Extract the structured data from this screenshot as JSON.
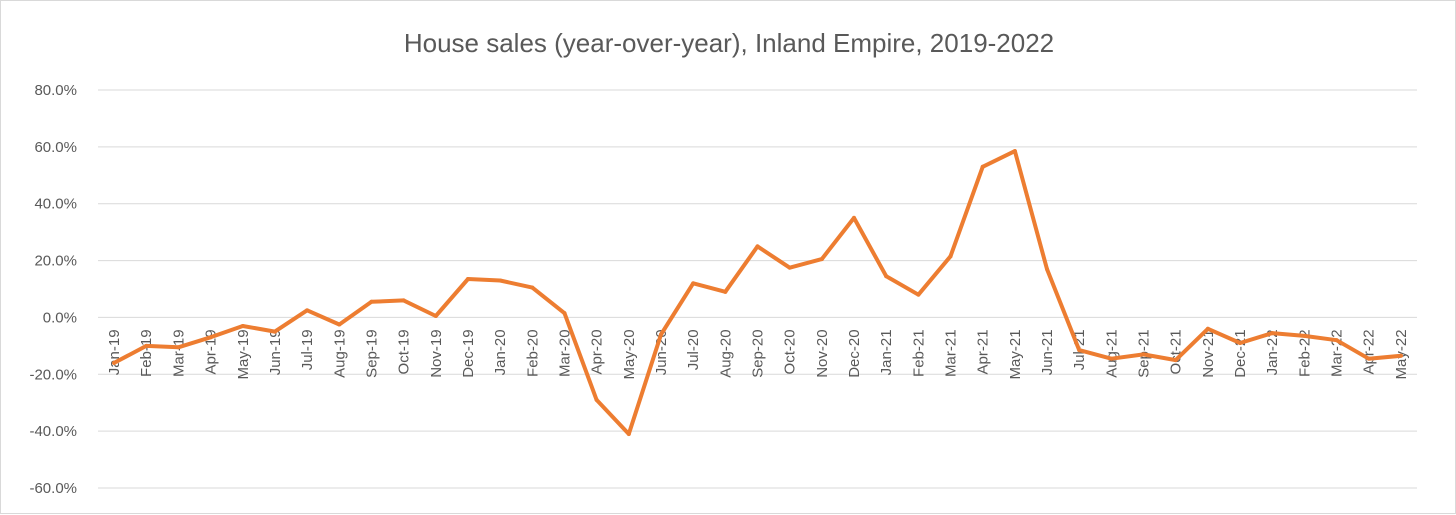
{
  "chart_data": {
    "type": "line",
    "title": "House sales (year-over-year), Inland Empire, 2019-2022",
    "xlabel": "",
    "ylabel": "",
    "ylim": [
      -60,
      80
    ],
    "yticks": [
      80,
      60,
      40,
      20,
      0,
      -20,
      -40,
      -60
    ],
    "ytick_labels": [
      "80.0%",
      "60.0%",
      "40.0%",
      "20.0%",
      "0.0%",
      "-20.0%",
      "-40.0%",
      "-60.0%"
    ],
    "grid": true,
    "legend": "none",
    "line_color": "#ed7d31",
    "categories": [
      "Jan-19",
      "Feb-19",
      "Mar-19",
      "Apr-19",
      "May-19",
      "Jun-19",
      "Jul-19",
      "Aug-19",
      "Sep-19",
      "Oct-19",
      "Nov-19",
      "Dec-19",
      "Jan-20",
      "Feb-20",
      "Mar-20",
      "Apr-20",
      "May-20",
      "Jun-20",
      "Jul-20",
      "Aug-20",
      "Sep-20",
      "Oct-20",
      "Nov-20",
      "Dec-20",
      "Jan-21",
      "Feb-21",
      "Mar-21",
      "Apr-21",
      "May-21",
      "Jun-21",
      "Jul-21",
      "Aug-21",
      "Sep-21",
      "Oct-21",
      "Nov-21",
      "Dec-21",
      "Jan-22",
      "Feb-22",
      "Mar-22",
      "Apr-22",
      "May-22"
    ],
    "series": [
      {
        "values": [
          -16.0,
          -10.0,
          -10.5,
          -7.0,
          -3.0,
          -5.0,
          2.5,
          -2.5,
          5.5,
          6.0,
          0.5,
          13.5,
          13.0,
          10.5,
          1.5,
          -29.0,
          -41.0,
          -6.0,
          12.0,
          9.0,
          25.0,
          17.5,
          20.5,
          35.0,
          14.5,
          8.0,
          21.5,
          53.0,
          58.5,
          17.0,
          -11.5,
          -14.5,
          -13.0,
          -15.0,
          -4.0,
          -9.0,
          -5.5,
          -6.5,
          -8.0,
          -14.5,
          -13.5
        ]
      }
    ]
  }
}
